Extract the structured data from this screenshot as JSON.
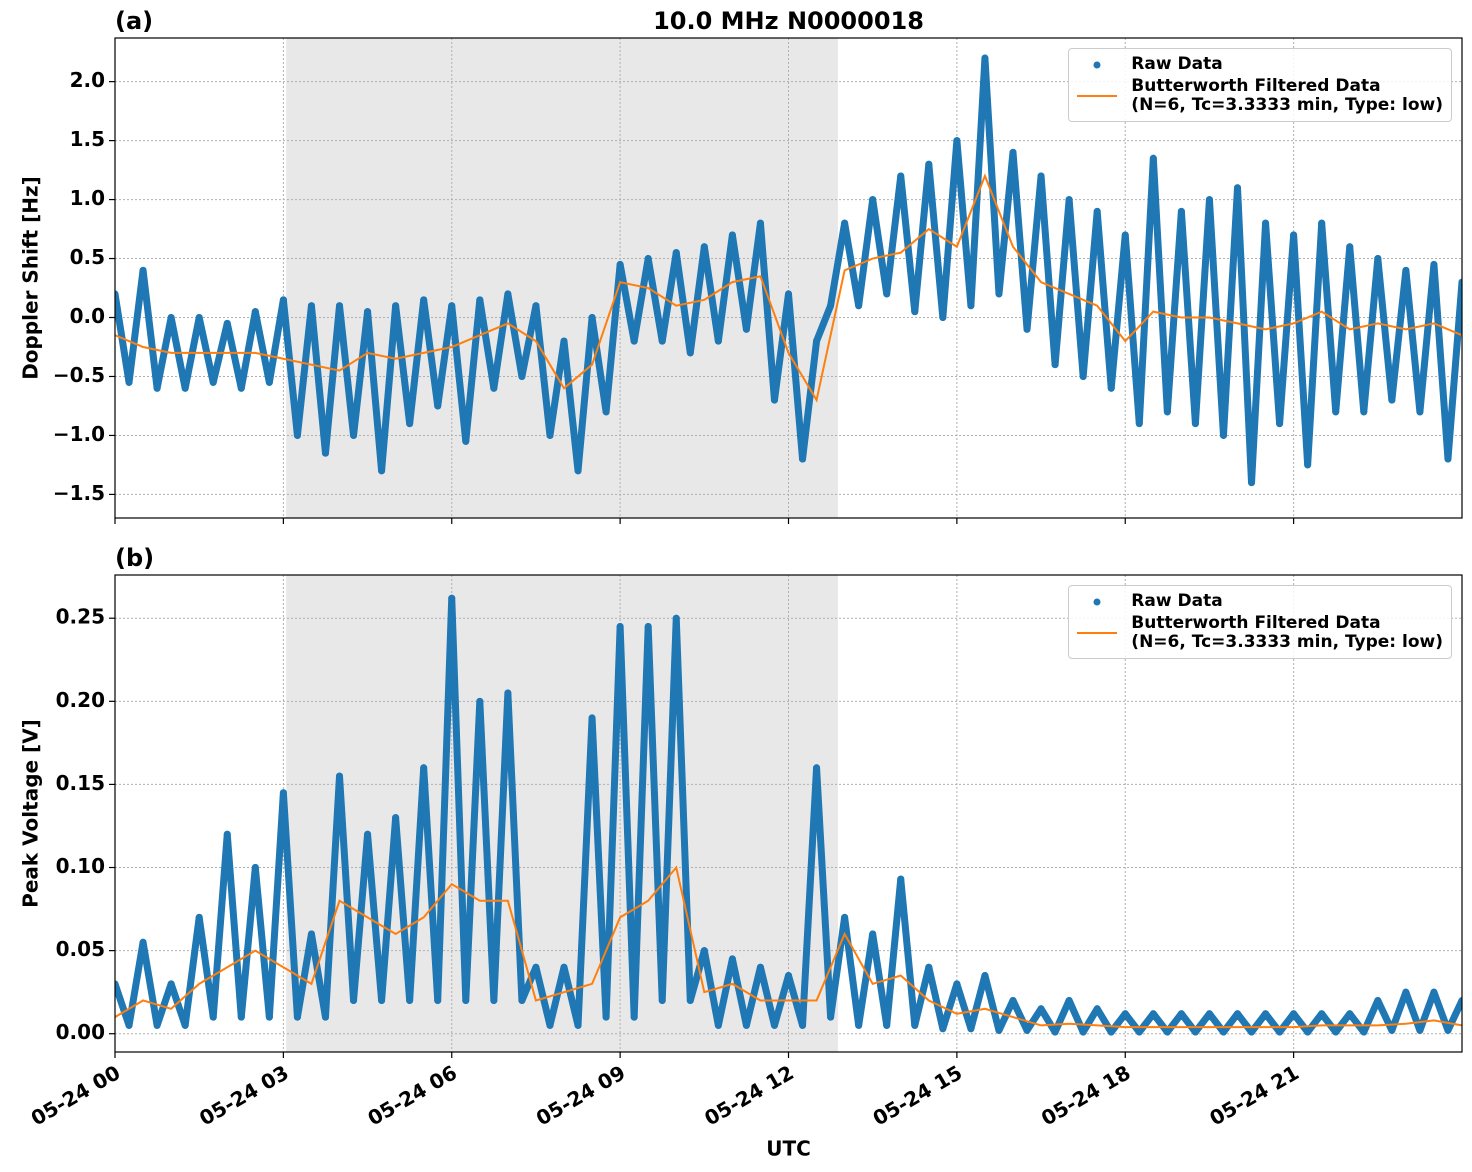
{
  "chart_data": [
    {
      "type": "line",
      "panel_label": "(a)",
      "title": "10.0 MHz N0000018",
      "ylabel": "Doppler Shift [Hz]",
      "xlim": [
        0,
        24
      ],
      "ylim": [
        -1.7,
        2.37
      ],
      "shade": [
        3.05,
        12.88
      ],
      "grid": true,
      "legend": "upper right",
      "xticks": [
        {
          "value": 0,
          "label": "05-24 00"
        },
        {
          "value": 3,
          "label": "05-24 03"
        },
        {
          "value": 6,
          "label": "05-24 06"
        },
        {
          "value": 9,
          "label": "05-24 09"
        },
        {
          "value": 12,
          "label": "05-24 12"
        },
        {
          "value": 15,
          "label": "05-24 15"
        },
        {
          "value": 18,
          "label": "05-24 18"
        },
        {
          "value": 21,
          "label": "05-24 21"
        }
      ],
      "yticks": [
        {
          "value": -1.5,
          "label": "−1.5"
        },
        {
          "value": -1,
          "label": "−1.0"
        },
        {
          "value": -0.5,
          "label": "−0.5"
        },
        {
          "value": 0,
          "label": "0.0"
        },
        0.5,
        {
          "value": 1,
          "label": "1.0"
        },
        1.5,
        {
          "value": 2,
          "label": "2.0"
        }
      ],
      "series": [
        {
          "name": "Raw Data",
          "type": "scatter",
          "color": "#1f77b4",
          "x": [
            0,
            0.25,
            0.5,
            0.75,
            1,
            1.25,
            1.5,
            1.75,
            2,
            2.25,
            2.5,
            2.75,
            3,
            3.25,
            3.5,
            3.75,
            4,
            4.25,
            4.5,
            4.75,
            5,
            5.25,
            5.5,
            5.75,
            6,
            6.25,
            6.5,
            6.75,
            7,
            7.25,
            7.5,
            7.75,
            8,
            8.25,
            8.5,
            8.75,
            9,
            9.25,
            9.5,
            9.75,
            10,
            10.25,
            10.5,
            10.75,
            11,
            11.25,
            11.5,
            11.75,
            12,
            12.25,
            12.5,
            12.75,
            13,
            13.25,
            13.5,
            13.75,
            14,
            14.25,
            14.5,
            14.75,
            15,
            15.25,
            15.5,
            15.75,
            16,
            16.25,
            16.5,
            16.75,
            17,
            17.25,
            17.5,
            17.75,
            18,
            18.25,
            18.5,
            18.75,
            19,
            19.25,
            19.5,
            19.75,
            20,
            20.25,
            20.5,
            20.75,
            21,
            21.25,
            21.5,
            21.75,
            22,
            22.25,
            22.5,
            22.75,
            23,
            23.25,
            23.5,
            23.75,
            24
          ],
          "values": [
            0.2,
            -0.55,
            0.4,
            -0.6,
            0.0,
            -0.6,
            0.0,
            -0.55,
            -0.05,
            -0.6,
            0.05,
            -0.55,
            0.15,
            -1.0,
            0.1,
            -1.15,
            0.1,
            -1.0,
            0.05,
            -1.3,
            0.1,
            -0.9,
            0.15,
            -0.75,
            0.1,
            -1.05,
            0.15,
            -0.6,
            0.2,
            -0.5,
            0.1,
            -1.0,
            -0.2,
            -1.3,
            0.0,
            -0.8,
            0.45,
            -0.2,
            0.5,
            -0.2,
            0.55,
            -0.3,
            0.6,
            -0.2,
            0.7,
            -0.1,
            0.8,
            -0.7,
            0.2,
            -1.2,
            -0.2,
            0.1,
            0.8,
            0.1,
            1.0,
            0.2,
            1.2,
            0.05,
            1.3,
            0.0,
            1.5,
            0.1,
            2.2,
            0.2,
            1.4,
            -0.1,
            1.2,
            -0.4,
            1.0,
            -0.5,
            0.9,
            -0.6,
            0.7,
            -0.9,
            1.35,
            -0.8,
            0.9,
            -0.9,
            1.0,
            -1.0,
            1.1,
            -1.4,
            0.8,
            -0.9,
            0.7,
            -1.25,
            0.8,
            -0.8,
            0.6,
            -0.8,
            0.5,
            -0.7,
            0.4,
            -0.8,
            0.45,
            -1.2,
            0.3
          ]
        },
        {
          "name": "Butterworth Filtered Data\n(N=6, Tc=3.3333 min, Type: low)",
          "type": "line",
          "color": "#ff7f0e",
          "x": [
            0,
            0.5,
            1,
            1.5,
            2,
            2.5,
            3,
            3.5,
            4,
            4.5,
            5,
            5.5,
            6,
            6.5,
            7,
            7.5,
            8,
            8.5,
            9,
            9.5,
            10,
            10.5,
            11,
            11.5,
            12,
            12.5,
            13,
            13.5,
            14,
            14.5,
            15,
            15.5,
            16,
            16.5,
            17,
            17.5,
            18,
            18.5,
            19,
            19.5,
            20,
            20.5,
            21,
            21.5,
            22,
            22.5,
            23,
            23.5,
            24
          ],
          "values": [
            -0.15,
            -0.25,
            -0.3,
            -0.3,
            -0.3,
            -0.3,
            -0.35,
            -0.4,
            -0.45,
            -0.3,
            -0.35,
            -0.3,
            -0.25,
            -0.15,
            -0.05,
            -0.2,
            -0.6,
            -0.4,
            0.3,
            0.25,
            0.1,
            0.15,
            0.3,
            0.35,
            -0.3,
            -0.7,
            0.4,
            0.5,
            0.55,
            0.75,
            0.6,
            1.2,
            0.6,
            0.3,
            0.2,
            0.1,
            -0.2,
            0.05,
            0.0,
            0.0,
            -0.05,
            -0.1,
            -0.05,
            0.05,
            -0.1,
            -0.05,
            -0.1,
            -0.05,
            -0.15
          ]
        }
      ]
    },
    {
      "type": "line",
      "panel_label": "(b)",
      "ylabel": "Peak Voltage [V]",
      "xlabel": "UTC",
      "xlim": [
        0,
        24
      ],
      "ylim": [
        -0.011,
        0.276
      ],
      "shade": [
        3.05,
        12.88
      ],
      "grid": true,
      "legend": "upper right",
      "xticks": [
        {
          "value": 0,
          "label": "05-24 00"
        },
        {
          "value": 3,
          "label": "05-24 03"
        },
        {
          "value": 6,
          "label": "05-24 06"
        },
        {
          "value": 9,
          "label": "05-24 09"
        },
        {
          "value": 12,
          "label": "05-24 12"
        },
        {
          "value": 15,
          "label": "05-24 15"
        },
        {
          "value": 18,
          "label": "05-24 18"
        },
        {
          "value": 21,
          "label": "05-24 21"
        }
      ],
      "yticks": [
        {
          "value": 0,
          "label": "0.00"
        },
        0.05,
        {
          "value": 0.1,
          "label": "0.10"
        },
        0.15,
        {
          "value": 0.2,
          "label": "0.20"
        },
        0.25
      ],
      "series": [
        {
          "name": "Raw Data",
          "type": "scatter",
          "color": "#1f77b4",
          "x": [
            0,
            0.25,
            0.5,
            0.75,
            1,
            1.25,
            1.5,
            1.75,
            2,
            2.25,
            2.5,
            2.75,
            3,
            3.25,
            3.5,
            3.75,
            4,
            4.25,
            4.5,
            4.75,
            5,
            5.25,
            5.5,
            5.75,
            6,
            6.25,
            6.5,
            6.75,
            7,
            7.25,
            7.5,
            7.75,
            8,
            8.25,
            8.5,
            8.75,
            9,
            9.25,
            9.5,
            9.75,
            10,
            10.25,
            10.5,
            10.75,
            11,
            11.25,
            11.5,
            11.75,
            12,
            12.25,
            12.5,
            12.75,
            13,
            13.25,
            13.5,
            13.75,
            14,
            14.25,
            14.5,
            14.75,
            15,
            15.25,
            15.5,
            15.75,
            16,
            16.25,
            16.5,
            16.75,
            17,
            17.25,
            17.5,
            17.75,
            18,
            18.25,
            18.5,
            18.75,
            19,
            19.25,
            19.5,
            19.75,
            20,
            20.25,
            20.5,
            20.75,
            21,
            21.25,
            21.5,
            21.75,
            22,
            22.25,
            22.5,
            22.75,
            23,
            23.25,
            23.5,
            23.75,
            24
          ],
          "values": [
            0.03,
            0.005,
            0.055,
            0.005,
            0.03,
            0.005,
            0.07,
            0.01,
            0.12,
            0.01,
            0.1,
            0.01,
            0.145,
            0.01,
            0.06,
            0.01,
            0.155,
            0.02,
            0.12,
            0.02,
            0.13,
            0.02,
            0.16,
            0.02,
            0.262,
            0.02,
            0.2,
            0.02,
            0.205,
            0.02,
            0.04,
            0.005,
            0.04,
            0.005,
            0.19,
            0.01,
            0.245,
            0.01,
            0.245,
            0.02,
            0.25,
            0.02,
            0.05,
            0.005,
            0.045,
            0.005,
            0.04,
            0.005,
            0.035,
            0.005,
            0.16,
            0.01,
            0.07,
            0.005,
            0.06,
            0.005,
            0.093,
            0.005,
            0.04,
            0.003,
            0.03,
            0.003,
            0.035,
            0.002,
            0.02,
            0.002,
            0.015,
            0.001,
            0.02,
            0.001,
            0.015,
            0.001,
            0.012,
            0.001,
            0.012,
            0.001,
            0.012,
            0.001,
            0.012,
            0.001,
            0.012,
            0.001,
            0.012,
            0.001,
            0.012,
            0.001,
            0.012,
            0.001,
            0.012,
            0.001,
            0.02,
            0.002,
            0.025,
            0.002,
            0.025,
            0.002,
            0.02
          ]
        },
        {
          "name": "Butterworth Filtered Data\n(N=6, Tc=3.3333 min, Type: low)",
          "type": "line",
          "color": "#ff7f0e",
          "x": [
            0,
            0.5,
            1,
            1.5,
            2,
            2.5,
            3,
            3.5,
            4,
            4.5,
            5,
            5.5,
            6,
            6.5,
            7,
            7.5,
            8,
            8.5,
            9,
            9.5,
            10,
            10.5,
            11,
            11.5,
            12,
            12.5,
            13,
            13.5,
            14,
            14.5,
            15,
            15.5,
            16,
            16.5,
            17,
            17.5,
            18,
            18.5,
            19,
            19.5,
            20,
            20.5,
            21,
            21.5,
            22,
            22.5,
            23,
            23.5,
            24
          ],
          "values": [
            0.01,
            0.02,
            0.015,
            0.03,
            0.04,
            0.05,
            0.04,
            0.03,
            0.08,
            0.07,
            0.06,
            0.07,
            0.09,
            0.08,
            0.08,
            0.02,
            0.025,
            0.03,
            0.07,
            0.08,
            0.1,
            0.025,
            0.03,
            0.02,
            0.02,
            0.02,
            0.06,
            0.03,
            0.035,
            0.02,
            0.012,
            0.015,
            0.01,
            0.005,
            0.006,
            0.005,
            0.004,
            0.004,
            0.004,
            0.004,
            0.004,
            0.004,
            0.004,
            0.005,
            0.005,
            0.005,
            0.006,
            0.008,
            0.005
          ]
        }
      ]
    }
  ]
}
